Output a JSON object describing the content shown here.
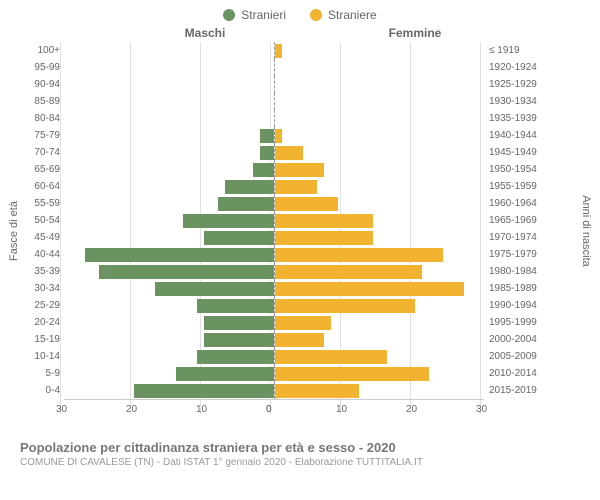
{
  "legend": {
    "male": "Stranieri",
    "female": "Straniere"
  },
  "columns": {
    "left": "Maschi",
    "right": "Femmine"
  },
  "axis": {
    "left": "Fasce di età",
    "right": "Anni di nascita"
  },
  "footer": {
    "title": "Popolazione per cittadinanza straniera per età e sesso - 2020",
    "subtitle": "COMUNE DI CAVALESE (TN) - Dati ISTAT 1° gennaio 2020 - Elaborazione TUTTITALIA.IT"
  },
  "chart": {
    "type": "pyramid-bar",
    "xmax": 30,
    "xticks": [
      30,
      20,
      10,
      0,
      10,
      20,
      30
    ],
    "male_color": "#6b9362",
    "female_color": "#f2b430",
    "bg": "#ffffff",
    "grid_color": "#e0e0e0",
    "rows": [
      {
        "age": "100+",
        "birth": "≤ 1919",
        "m": 0,
        "f": 1
      },
      {
        "age": "95-99",
        "birth": "1920-1924",
        "m": 0,
        "f": 0
      },
      {
        "age": "90-94",
        "birth": "1925-1929",
        "m": 0,
        "f": 0
      },
      {
        "age": "85-89",
        "birth": "1930-1934",
        "m": 0,
        "f": 0
      },
      {
        "age": "80-84",
        "birth": "1935-1939",
        "m": 0,
        "f": 0
      },
      {
        "age": "75-79",
        "birth": "1940-1944",
        "m": 2,
        "f": 1
      },
      {
        "age": "70-74",
        "birth": "1945-1949",
        "m": 2,
        "f": 4
      },
      {
        "age": "65-69",
        "birth": "1950-1954",
        "m": 3,
        "f": 7
      },
      {
        "age": "60-64",
        "birth": "1955-1959",
        "m": 7,
        "f": 6
      },
      {
        "age": "55-59",
        "birth": "1960-1964",
        "m": 8,
        "f": 9
      },
      {
        "age": "50-54",
        "birth": "1965-1969",
        "m": 13,
        "f": 14
      },
      {
        "age": "45-49",
        "birth": "1970-1974",
        "m": 10,
        "f": 14
      },
      {
        "age": "40-44",
        "birth": "1975-1979",
        "m": 27,
        "f": 24
      },
      {
        "age": "35-39",
        "birth": "1980-1984",
        "m": 25,
        "f": 21
      },
      {
        "age": "30-34",
        "birth": "1985-1989",
        "m": 17,
        "f": 27
      },
      {
        "age": "25-29",
        "birth": "1990-1994",
        "m": 11,
        "f": 20
      },
      {
        "age": "20-24",
        "birth": "1995-1999",
        "m": 10,
        "f": 8
      },
      {
        "age": "15-19",
        "birth": "2000-2004",
        "m": 10,
        "f": 7
      },
      {
        "age": "10-14",
        "birth": "2005-2009",
        "m": 11,
        "f": 16
      },
      {
        "age": "5-9",
        "birth": "2010-2014",
        "m": 14,
        "f": 22
      },
      {
        "age": "0-4",
        "birth": "2015-2019",
        "m": 20,
        "f": 12
      }
    ]
  }
}
